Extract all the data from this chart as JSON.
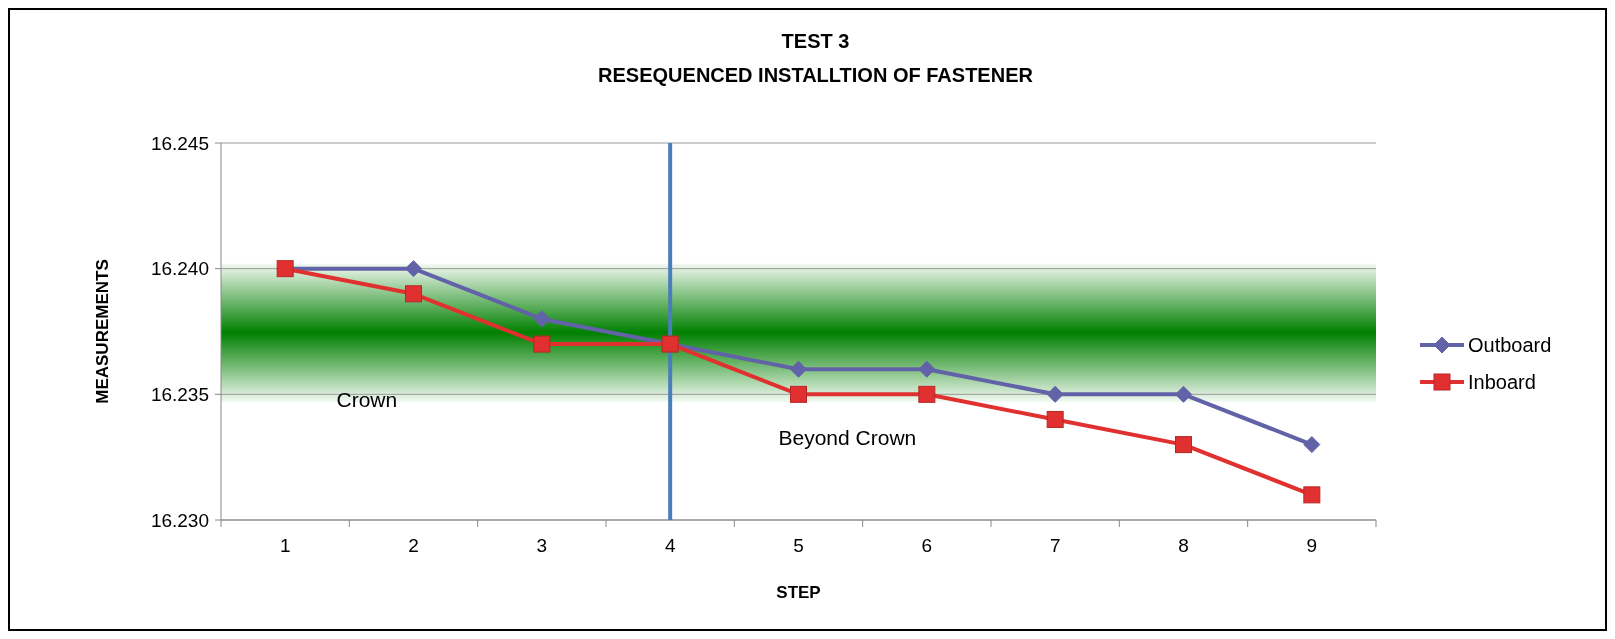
{
  "chart_data": {
    "type": "line",
    "title": "TEST 3",
    "subtitle": "RESEQUENCED INSTALLTION OF FASTENER",
    "xlabel": "STEP",
    "ylabel": "MEASUREMENTS",
    "categories": [
      "1",
      "2",
      "3",
      "4",
      "5",
      "6",
      "7",
      "8",
      "9"
    ],
    "series": [
      {
        "name": "Outboard",
        "color": "#6262a8",
        "marker": "diamond",
        "values": [
          16.24,
          16.24,
          16.238,
          16.237,
          16.236,
          16.236,
          16.235,
          16.235,
          16.233
        ]
      },
      {
        "name": "Inboard",
        "color": "#e0302f",
        "marker": "square",
        "values": [
          16.24,
          16.239,
          16.237,
          16.237,
          16.235,
          16.235,
          16.234,
          16.233,
          16.231
        ]
      }
    ],
    "ylim": [
      16.23,
      16.245
    ],
    "yticks": [
      {
        "value": 16.23,
        "label": "16.230"
      },
      {
        "value": 16.235,
        "label": "16.235"
      },
      {
        "value": 16.24,
        "label": "16.240"
      },
      {
        "value": 16.245,
        "label": "16.245"
      }
    ],
    "grid": "y",
    "legend": "right",
    "ref_lines": [
      {
        "axis": "x",
        "value": "4",
        "color": "#4a7ebb"
      }
    ],
    "bands": [
      {
        "axis": "y",
        "from": 16.2347,
        "to": 16.2402,
        "color": "#008000"
      }
    ],
    "annotations": [
      "Crown",
      "Beyond Crown"
    ]
  }
}
